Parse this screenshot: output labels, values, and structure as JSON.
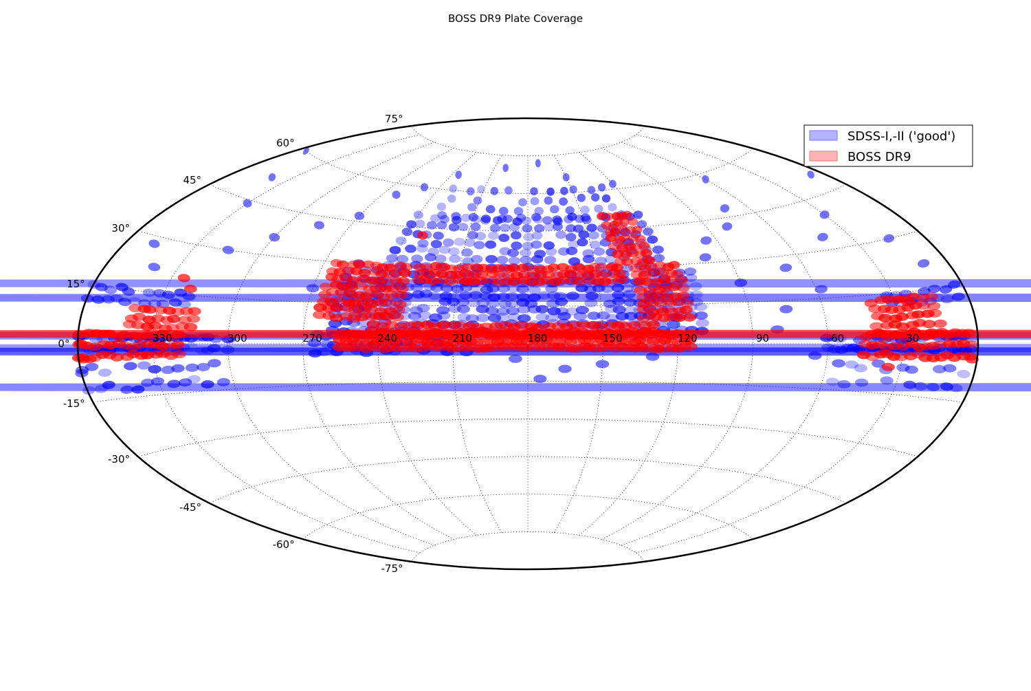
{
  "chart_data": {
    "type": "scatter",
    "projection": "aitoff",
    "title": "BOSS DR9 Plate Coverage",
    "xlabel": "",
    "ylabel": "",
    "grid": true,
    "legend_position": "top-right",
    "ra_ticks": [
      330,
      300,
      270,
      240,
      210,
      180,
      150,
      120,
      90,
      60,
      30
    ],
    "ra_tick_labels": [
      "330",
      "300",
      "270",
      "240",
      "210",
      "180",
      "150",
      "120",
      "90",
      "60",
      "30"
    ],
    "dec_ticks": [
      75,
      60,
      45,
      30,
      15,
      0,
      -15,
      -30,
      -45,
      -60,
      -75
    ],
    "dec_tick_labels": [
      "75°",
      "60°",
      "45°",
      "30°",
      "15°",
      "0°",
      "-15°",
      "-30°",
      "-45°",
      "-60°",
      "-75°"
    ],
    "xlim": [
      360,
      0
    ],
    "ylim": [
      -90,
      90
    ],
    "series": [
      {
        "name": "SDSS-I,-II ('good')",
        "color": "#0000ff",
        "legend_color": "#b3b3ff",
        "regions": [
          {
            "ra": [
              110,
              260
            ],
            "dec": [
              5,
              30
            ],
            "d_ra": 4,
            "d_dec": 2.8
          },
          {
            "ra": [
              120,
              245
            ],
            "dec": [
              30,
              50
            ],
            "d_ra": 5.5,
            "d_dec": 3.2
          },
          {
            "ra": [
              130,
              230
            ],
            "dec": [
              50,
              62
            ],
            "d_ra": 9,
            "d_dec": 3.5
          },
          {
            "ra": [
              205,
              265
            ],
            "dec": [
              -3,
              3
            ],
            "d_ra": 4,
            "d_dec": 3
          },
          {
            "ra": [
              300,
              360
            ],
            "dec": [
              -1.5,
              1.5
            ],
            "d_ra": 2.5,
            "d_dec": 3
          },
          {
            "ra": [
              0,
              60
            ],
            "dec": [
              -1.5,
              1.5
            ],
            "d_ra": 2.5,
            "d_dec": 3
          },
          {
            "ra": [
              305,
              360
            ],
            "dec": [
              -12,
              -6
            ],
            "d_ra": 5,
            "d_dec": 5
          },
          {
            "ra": [
              0,
              55
            ],
            "dec": [
              -12,
              -6
            ],
            "d_ra": 5,
            "d_dec": 5
          },
          {
            "ra": [
              320,
              360
            ],
            "dec": [
              12,
              16
            ],
            "d_ra": 4,
            "d_dec": 3
          },
          {
            "ra": [
              0,
              35
            ],
            "dec": [
              12,
              16
            ],
            "d_ra": 4,
            "d_dec": 3
          }
        ],
        "points": [
          [
            100,
            32
          ],
          [
            95,
            38
          ],
          [
            80,
            42
          ],
          [
            72,
            48
          ],
          [
            68,
            26
          ],
          [
            58,
            18
          ],
          [
            42,
            34
          ],
          [
            30,
            40
          ],
          [
            15,
            30
          ],
          [
            10,
            22
          ],
          [
            6,
            50
          ],
          [
            262,
            56
          ],
          [
            270,
            47
          ],
          [
            285,
            42
          ],
          [
            300,
            36
          ],
          [
            315,
            30
          ],
          [
            330,
            44
          ],
          [
            340,
            52
          ],
          [
            348,
            28
          ],
          [
            340,
            22
          ],
          [
            355,
            60
          ],
          [
            250,
            60
          ],
          [
            235,
            66
          ],
          [
            200,
            70
          ],
          [
            170,
            72
          ],
          [
            150,
            66
          ],
          [
            120,
            62
          ],
          [
            60,
            58
          ],
          [
            90,
            22
          ],
          [
            75,
            12
          ],
          [
            65,
            -4
          ],
          [
            150,
            -8
          ],
          [
            165,
            -10
          ],
          [
            185,
            -6
          ],
          [
            175,
            -14
          ],
          [
            270,
            20
          ],
          [
            260,
            15
          ],
          [
            80,
            5
          ],
          [
            120,
            10
          ],
          [
            130,
            -5
          ],
          [
            245,
            24
          ],
          [
            255,
            30
          ]
        ]
      },
      {
        "name": "BOSS DR9",
        "color": "#ff0000",
        "legend_color": "#ffb3b3",
        "regions": [
          {
            "ra": [
              115,
              255
            ],
            "dec": [
              -1.5,
              3.5
            ],
            "d_ra": 2.5,
            "d_dec": 2.5
          },
          {
            "ra": [
              130,
              245
            ],
            "dec": [
              4.5,
              7
            ],
            "d_ra": 3.5,
            "d_dec": 2.5
          },
          {
            "ra": [
              140,
              230
            ],
            "dec": [
              25,
              32
            ],
            "d_ra": 3.5,
            "d_dec": 2.5
          },
          {
            "ra": [
              233,
              265
            ],
            "dec": [
              10,
              30
            ],
            "d_ra": 3.5,
            "d_dec": 2.8
          },
          {
            "ra": [
              115,
              135
            ],
            "dec": [
              10,
              32
            ],
            "d_ra": 3.5,
            "d_dec": 2.8
          },
          {
            "ra": [
              125,
              140
            ],
            "dec": [
              32,
              50
            ],
            "d_ra": 3.5,
            "d_dec": 3
          },
          {
            "ra": [
              320,
              360
            ],
            "dec": [
              -3.5,
              3.5
            ],
            "d_ra": 3,
            "d_dec": 3
          },
          {
            "ra": [
              0,
              45
            ],
            "dec": [
              -3.5,
              3.5
            ],
            "d_ra": 3,
            "d_dec": 3
          },
          {
            "ra": [
              315,
              340
            ],
            "dec": [
              5,
              12
            ],
            "d_ra": 3.5,
            "d_dec": 2.5
          },
          {
            "ra": [
              15,
              40
            ],
            "dec": [
              3,
              14
            ],
            "d_ra": 3.5,
            "d_dec": 2.5
          }
        ],
        "points": [
          [
            232,
            42
          ],
          [
            325,
            20
          ],
          [
            320,
            17
          ],
          [
            35,
            -7
          ],
          [
            2,
            -4
          ],
          [
            358,
            -4
          ],
          [
            25,
            12
          ]
        ]
      }
    ]
  }
}
